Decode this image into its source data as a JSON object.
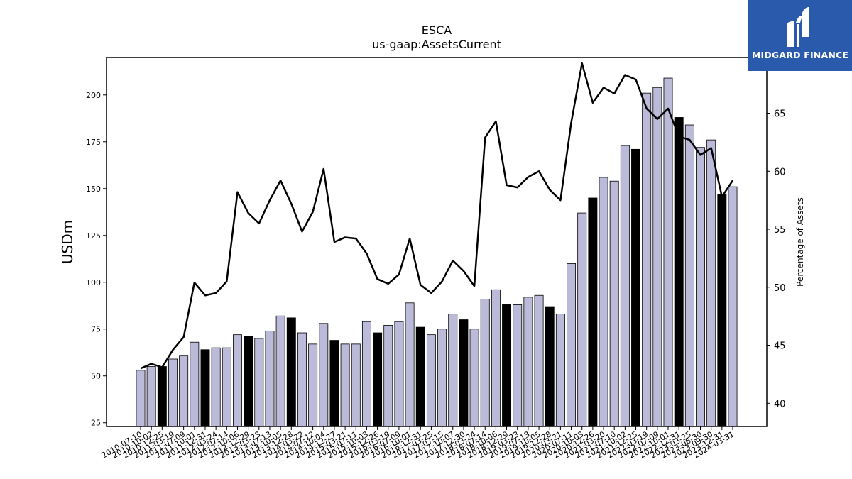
{
  "brand": {
    "name": "MIDGARD FINANCE",
    "bg_color": "#2a5aab"
  },
  "chart_data": {
    "type": "bar",
    "title": "ESCA",
    "subtitle": "us-gaap:AssetsCurrent",
    "ylabel": "USDm",
    "y2label": "Percentage of Assets",
    "ylim": [
      23,
      220
    ],
    "y2lim": [
      38,
      69.8
    ],
    "yticks": [
      25,
      50,
      75,
      100,
      125,
      150,
      175,
      200
    ],
    "y2ticks": [
      40,
      45,
      50,
      55,
      60,
      65
    ],
    "bar_color": "#bcbad9",
    "bar_highlight_color": "#000000",
    "line_color": "#000000",
    "grid": false,
    "categories": [
      "2010-07-10",
      "2010-10-02",
      "2010-12-25",
      "2011-03-19",
      "2011-07-09",
      "2011-10-01",
      "2011-12-31",
      "2012-03-24",
      "2012-07-14",
      "2012-10-06",
      "2012-12-29",
      "2013-03-23",
      "2013-07-13",
      "2013-10-05",
      "2013-12-28",
      "2014-03-22",
      "2014-07-12",
      "2014-10-04",
      "2014-12-27",
      "2015-03-21",
      "2015-07-11",
      "2015-10-03",
      "2015-12-26",
      "2016-03-19",
      "2016-07-09",
      "2016-10-01",
      "2016-12-31",
      "2017-03-25",
      "2017-07-15",
      "2017-10-07",
      "2017-12-30",
      "2018-03-24",
      "2018-07-14",
      "2018-10-06",
      "2018-12-29",
      "2019-03-23",
      "2019-07-13",
      "2019-10-05",
      "2019-12-28",
      "2020-03-21",
      "2020-07-11",
      "2020-10-03",
      "2020-12-26",
      "2021-03-20",
      "2021-07-10",
      "2021-10-02",
      "2021-12-25",
      "2022-03-19",
      "2022-07-09",
      "2022-10-01",
      "2022-12-31",
      "2023-03-25",
      "2023-06-30",
      "2023-09-30",
      "2023-12-31",
      "2024-03-31"
    ],
    "tick_labels": [
      "2010-07-10",
      "2010-10-02",
      "2010-12-25",
      "2011-03-19",
      "2011-07-09",
      "2011-10-01",
      "2011-12-31",
      "2012-03-24",
      "2012-07-14",
      "2012-10-06",
      "2012-12-29",
      "2013-03-23",
      "2013-07-13",
      "2013-10-05",
      "2013-12-28",
      "2014-03-22",
      "2014-07-12",
      "2014-10-04",
      "2014-12-27",
      "2015-03-21",
      "2015-07-11",
      "2015-10-03",
      "2015-12-26",
      "2016-03-19",
      "2016-07-09",
      "2016-10-01",
      "2016-12-31",
      "2017-03-25",
      "2017-07-15",
      "2017-10-07",
      "2017-12-30",
      "2018-03-24",
      "2018-07-14",
      "2018-10-06",
      "2018-12-29",
      "2019-03-23",
      "2019-07-13",
      "2019-10-05",
      "2019-12-28",
      "2020-03-21",
      "2020-07-11",
      "2020-10-03",
      "2020-12-26",
      "2021-03-20",
      "2021-07-10",
      "2021-10-02",
      "2021-12-25",
      "2022-03-19",
      "2022-07-09",
      "2022-10-01",
      "2022-12-31",
      "2023-03-25",
      "2023-06-30",
      "2023-09-30",
      "2023-12-31",
      "2024-03-31"
    ],
    "series": [
      {
        "name": "AssetsCurrent",
        "type": "bar",
        "axis": "left",
        "values": [
          53,
          55,
          55,
          59,
          61,
          68,
          64,
          65,
          65,
          72,
          71,
          70,
          74,
          82,
          81,
          73,
          67,
          78,
          69,
          67,
          67,
          79,
          73,
          77,
          79,
          89,
          76,
          72,
          75,
          83,
          80,
          75,
          91,
          96,
          88,
          88,
          92,
          93,
          87,
          83,
          110,
          137,
          145,
          156,
          154,
          173,
          171,
          201,
          204,
          209,
          188,
          184,
          172,
          176,
          147,
          151
        ]
      },
      {
        "name": "Percentage of Assets",
        "type": "line",
        "axis": "right",
        "values": [
          43.0,
          43.4,
          43.1,
          44.6,
          45.7,
          50.4,
          49.3,
          49.5,
          50.5,
          58.2,
          56.4,
          55.5,
          57.5,
          59.2,
          57.2,
          54.8,
          56.5,
          60.2,
          53.9,
          54.3,
          54.2,
          52.9,
          50.7,
          50.3,
          51.1,
          54.2,
          50.2,
          49.5,
          50.5,
          52.3,
          51.4,
          50.1,
          62.9,
          64.3,
          58.8,
          58.6,
          59.5,
          60.0,
          58.4,
          57.5,
          64.2,
          69.3,
          65.9,
          67.2,
          66.7,
          68.3,
          67.9,
          65.4,
          64.5,
          65.4,
          63.0,
          62.7,
          61.4,
          62.0,
          57.8,
          59.2
        ]
      }
    ],
    "highlighted_indices": [
      2,
      6,
      10,
      14,
      18,
      22,
      26,
      30,
      34,
      38,
      42,
      46,
      50,
      54
    ]
  }
}
